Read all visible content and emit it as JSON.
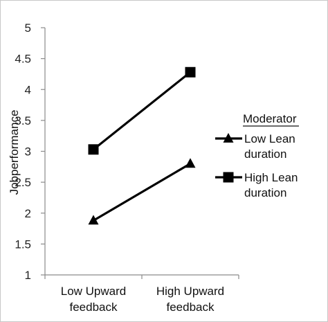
{
  "chart_data": {
    "type": "line",
    "categories": [
      "Low Upward feedback",
      "High Upward feedback"
    ],
    "category_lines": [
      [
        "Low Upward",
        "feedback"
      ],
      [
        "High Upward",
        "feedback"
      ]
    ],
    "ylabel": "Jobperformance",
    "ylim": [
      1,
      5
    ],
    "yticks": [
      "1",
      "1.5",
      "2",
      "2.5",
      "3",
      "3.5",
      "4",
      "4.5",
      "5"
    ],
    "grid": false,
    "legend": {
      "title": "Moderator",
      "placement": "right",
      "entries": [
        {
          "lines": [
            "Low Lean",
            "duration"
          ]
        },
        {
          "lines": [
            "High Lean",
            "duration"
          ]
        }
      ]
    },
    "series": [
      {
        "name": "Low Lean duration",
        "marker": "triangle",
        "color": "#000000",
        "values": [
          1.88,
          2.8
        ]
      },
      {
        "name": "High Lean duration",
        "marker": "square",
        "color": "#000000",
        "values": [
          3.03,
          4.28
        ]
      }
    ]
  }
}
